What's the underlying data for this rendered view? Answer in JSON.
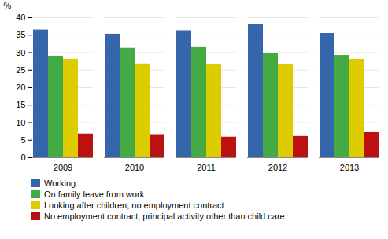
{
  "chart_data": {
    "type": "bar",
    "categories": [
      "2009",
      "2010",
      "2011",
      "2012",
      "2013"
    ],
    "series": [
      {
        "name": "Working",
        "color": "#3565AA",
        "values": [
          36.5,
          35.3,
          36.3,
          38.0,
          35.5
        ]
      },
      {
        "name": "On family leave from work",
        "color": "#44AA44",
        "values": [
          29.0,
          31.3,
          31.5,
          29.7,
          29.2
        ]
      },
      {
        "name": "Looking after children, no employment contract",
        "color": "#DDCC00",
        "values": [
          28.1,
          26.8,
          26.5,
          26.7,
          28.1
        ]
      },
      {
        "name": "No employment contract, principal activity other than child care",
        "color": "#BB1111",
        "values": [
          6.8,
          6.4,
          5.9,
          6.1,
          7.2
        ]
      }
    ],
    "ylabel": "%",
    "ylim": [
      0,
      40
    ],
    "yticks": [
      0,
      5,
      10,
      15,
      20,
      25,
      30,
      35,
      40
    ],
    "grid": true,
    "legend": "bottom"
  }
}
